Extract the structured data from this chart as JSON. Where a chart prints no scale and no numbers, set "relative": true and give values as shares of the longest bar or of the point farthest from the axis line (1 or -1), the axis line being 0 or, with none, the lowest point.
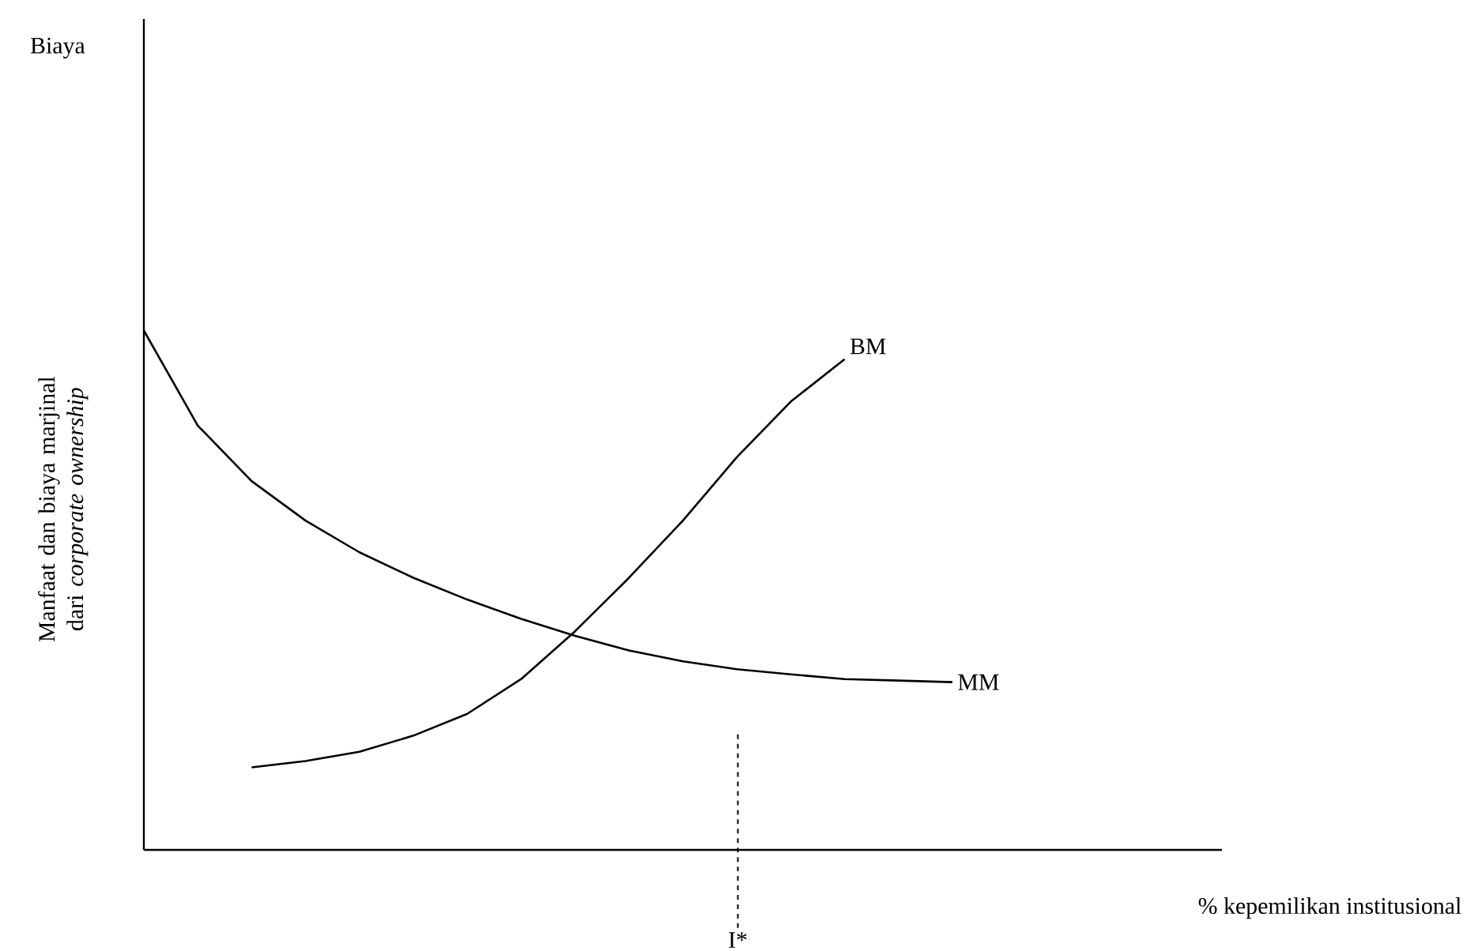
{
  "chart_data": {
    "type": "line",
    "relative": true,
    "xlabel": "% kepemilikan institusional",
    "ylabel": "Manfaat dan biaya marjinal dari *corporate ownership*",
    "annotations": [
      "Biaya",
      "I*"
    ],
    "tick_labels": false,
    "marker": "none",
    "line_style": "solid",
    "categories": [
      null,
      null,
      null,
      null,
      null,
      null,
      null,
      null,
      null,
      null,
      null,
      null,
      null,
      null,
      null,
      null,
      null,
      null,
      null,
      null,
      null
    ],
    "series": [
      {
        "name": "MM",
        "color": "#000000",
        "values": [
          1.0,
          0.817,
          0.71,
          0.634,
          0.573,
          0.524,
          0.482,
          0.445,
          0.412,
          0.384,
          0.363,
          0.348,
          0.338,
          0.329,
          0.326,
          0.323,
          null,
          null,
          null,
          null,
          null
        ]
      },
      {
        "name": "BM",
        "color": "#000000",
        "values": [
          null,
          null,
          0.159,
          0.171,
          0.189,
          0.22,
          0.262,
          0.329,
          0.421,
          0.524,
          0.634,
          0.756,
          0.863,
          0.945,
          null,
          null,
          null,
          null,
          null,
          null,
          null
        ]
      }
    ]
  }
}
